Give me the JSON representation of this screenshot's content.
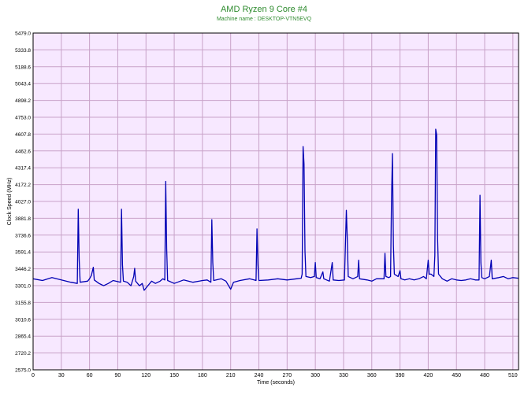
{
  "chart_data": {
    "type": "line",
    "title": "AMD Ryzen 9 Core #4",
    "subtitle": "Machine name : DESKTOP-VTN5EVQ",
    "xlabel": "Time (seconds)",
    "ylabel": "Clock Speed (MHz)",
    "xlim": [
      0,
      516
    ],
    "ylim": [
      2575.0,
      5479.0
    ],
    "x_ticks": [
      0,
      30,
      60,
      90,
      120,
      150,
      180,
      210,
      240,
      270,
      300,
      330,
      360,
      390,
      420,
      450,
      480,
      510
    ],
    "y_ticks": [
      "2575.0",
      "2720.2",
      "2865.4",
      "3010.6",
      "3155.8",
      "3301.0",
      "3446.2",
      "3591.4",
      "3736.6",
      "3881.8",
      "4027.0",
      "4172.2",
      "4317.4",
      "4462.6",
      "4607.8",
      "4753.0",
      "4898.2",
      "5043.4",
      "5188.6",
      "5333.8",
      "5479.0"
    ],
    "grid": true,
    "colors": {
      "line": "#0000b4",
      "background": "#f7e8ff",
      "grid": "#c8a2c8",
      "title": "#2e8b2e"
    },
    "baseline_mhz": 3360,
    "series": [
      {
        "points": [
          [
            0,
            3360
          ],
          [
            10,
            3345
          ],
          [
            20,
            3370
          ],
          [
            30,
            3350
          ],
          [
            40,
            3330
          ],
          [
            47,
            3320
          ],
          [
            48,
            3960
          ],
          [
            49,
            3520
          ],
          [
            50,
            3330
          ],
          [
            58,
            3340
          ],
          [
            60,
            3360
          ],
          [
            62,
            3390
          ],
          [
            64,
            3460
          ],
          [
            65,
            3350
          ],
          [
            70,
            3320
          ],
          [
            75,
            3300
          ],
          [
            80,
            3320
          ],
          [
            85,
            3345
          ],
          [
            93,
            3330
          ],
          [
            94,
            3960
          ],
          [
            95,
            3480
          ],
          [
            96,
            3340
          ],
          [
            100,
            3330
          ],
          [
            104,
            3300
          ],
          [
            107,
            3380
          ],
          [
            108,
            3450
          ],
          [
            109,
            3340
          ],
          [
            113,
            3300
          ],
          [
            116,
            3320
          ],
          [
            118,
            3260
          ],
          [
            122,
            3300
          ],
          [
            126,
            3340
          ],
          [
            130,
            3320
          ],
          [
            135,
            3340
          ],
          [
            138,
            3360
          ],
          [
            140,
            3350
          ],
          [
            141,
            4200
          ],
          [
            142,
            3620
          ],
          [
            143,
            3345
          ],
          [
            150,
            3320
          ],
          [
            160,
            3350
          ],
          [
            170,
            3330
          ],
          [
            180,
            3345
          ],
          [
            185,
            3350
          ],
          [
            189,
            3330
          ],
          [
            190,
            3870
          ],
          [
            191,
            3500
          ],
          [
            192,
            3345
          ],
          [
            200,
            3360
          ],
          [
            205,
            3340
          ],
          [
            210,
            3270
          ],
          [
            213,
            3330
          ],
          [
            220,
            3345
          ],
          [
            230,
            3360
          ],
          [
            235,
            3350
          ],
          [
            237,
            3345
          ],
          [
            238,
            3790
          ],
          [
            239,
            3480
          ],
          [
            240,
            3345
          ],
          [
            250,
            3350
          ],
          [
            260,
            3360
          ],
          [
            270,
            3350
          ],
          [
            280,
            3360
          ],
          [
            285,
            3365
          ],
          [
            286,
            3400
          ],
          [
            287,
            4500
          ],
          [
            288,
            4350
          ],
          [
            289,
            3600
          ],
          [
            290,
            3380
          ],
          [
            295,
            3370
          ],
          [
            299,
            3380
          ],
          [
            300,
            3500
          ],
          [
            301,
            3370
          ],
          [
            305,
            3360
          ],
          [
            308,
            3420
          ],
          [
            309,
            3360
          ],
          [
            315,
            3340
          ],
          [
            318,
            3500
          ],
          [
            319,
            3350
          ],
          [
            325,
            3345
          ],
          [
            331,
            3350
          ],
          [
            333,
            3950
          ],
          [
            334,
            3700
          ],
          [
            335,
            3380
          ],
          [
            340,
            3360
          ],
          [
            345,
            3380
          ],
          [
            346,
            3520
          ],
          [
            347,
            3360
          ],
          [
            355,
            3350
          ],
          [
            360,
            3340
          ],
          [
            365,
            3360
          ],
          [
            373,
            3360
          ],
          [
            374,
            3580
          ],
          [
            375,
            3380
          ],
          [
            378,
            3370
          ],
          [
            380,
            3380
          ],
          [
            381,
            4050
          ],
          [
            382,
            4440
          ],
          [
            383,
            3650
          ],
          [
            384,
            3400
          ],
          [
            388,
            3380
          ],
          [
            390,
            3430
          ],
          [
            391,
            3360
          ],
          [
            395,
            3350
          ],
          [
            400,
            3360
          ],
          [
            405,
            3350
          ],
          [
            410,
            3360
          ],
          [
            415,
            3380
          ],
          [
            418,
            3360
          ],
          [
            420,
            3520
          ],
          [
            421,
            3400
          ],
          [
            423,
            3400
          ],
          [
            426,
            3380
          ],
          [
            427,
            3560
          ],
          [
            428,
            4650
          ],
          [
            429,
            4600
          ],
          [
            430,
            3700
          ],
          [
            431,
            3400
          ],
          [
            435,
            3360
          ],
          [
            440,
            3340
          ],
          [
            445,
            3360
          ],
          [
            450,
            3350
          ],
          [
            455,
            3345
          ],
          [
            460,
            3350
          ],
          [
            465,
            3360
          ],
          [
            470,
            3350
          ],
          [
            474,
            3350
          ],
          [
            475,
            4080
          ],
          [
            476,
            3500
          ],
          [
            477,
            3370
          ],
          [
            480,
            3360
          ],
          [
            485,
            3380
          ],
          [
            487,
            3520
          ],
          [
            488,
            3360
          ],
          [
            495,
            3370
          ],
          [
            500,
            3380
          ],
          [
            505,
            3360
          ],
          [
            510,
            3370
          ],
          [
            516,
            3365
          ]
        ]
      }
    ]
  }
}
